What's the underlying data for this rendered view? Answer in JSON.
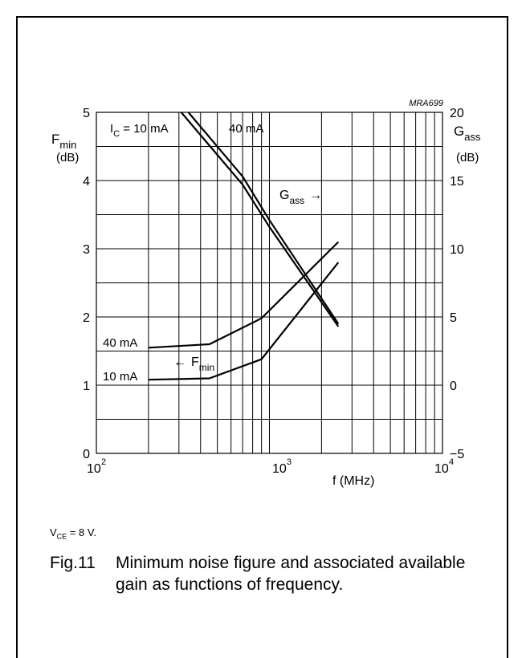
{
  "chart_data": {
    "type": "line",
    "code": "MRA699",
    "xscale": "log",
    "xlim": [
      100,
      10000
    ],
    "x_ticks": [
      {
        "base": "10",
        "exp": "2"
      },
      {
        "base": "10",
        "exp": "3"
      },
      {
        "base": "10",
        "exp": "4"
      }
    ],
    "xlabel": "f (MHz)",
    "ylim_left": [
      0,
      5
    ],
    "ylim_right": [
      -5,
      20
    ],
    "left_ticks": [
      "0",
      "1",
      "2",
      "3",
      "4",
      "5"
    ],
    "right_ticks": [
      "−5",
      "0",
      "5",
      "10",
      "15",
      "20"
    ],
    "left_label": {
      "base": "F",
      "sub": "min",
      "unit": "(dB)"
    },
    "right_label": {
      "base": "G",
      "sub": "ass",
      "unit": "(dB)"
    },
    "grid": true,
    "series": [
      {
        "name": "40 mA",
        "group": "Fmin",
        "axis": "left",
        "x": [
          200,
          450,
          900,
          2500
        ],
        "y": [
          1.55,
          1.6,
          1.98,
          3.1
        ]
      },
      {
        "name": "10 mA",
        "group": "Fmin",
        "axis": "left",
        "x": [
          200,
          450,
          900,
          2500
        ],
        "y": [
          1.08,
          1.1,
          1.38,
          2.8
        ]
      },
      {
        "name": "10 mA",
        "group": "Gass",
        "axis": "right",
        "x": [
          300,
          700,
          1000,
          2500
        ],
        "y": [
          20.2,
          14.7,
          11.6,
          4.3
        ]
      },
      {
        "name": "40 mA",
        "group": "Gass",
        "axis": "right",
        "x": [
          330,
          700,
          1000,
          2500
        ],
        "y": [
          20.2,
          15.3,
          12.1,
          4.5
        ]
      }
    ],
    "annotations": {
      "ic10": {
        "pre": "I",
        "sub": "C",
        "post": " = 10 mA"
      },
      "ic40": "40 mA",
      "gass": {
        "base": "G",
        "sub": "ass",
        "arrow": "→"
      },
      "fmin": {
        "arrow": "←",
        "base": "F",
        "sub": "min"
      },
      "fmin40": "40 mA",
      "fmin10": "10 mA"
    }
  },
  "conditions": {
    "base": "V",
    "sub": "CE",
    "post": " = 8 V."
  },
  "caption": {
    "fig": "Fig.11",
    "text": "Minimum noise figure and associated available gain as functions of frequency."
  }
}
